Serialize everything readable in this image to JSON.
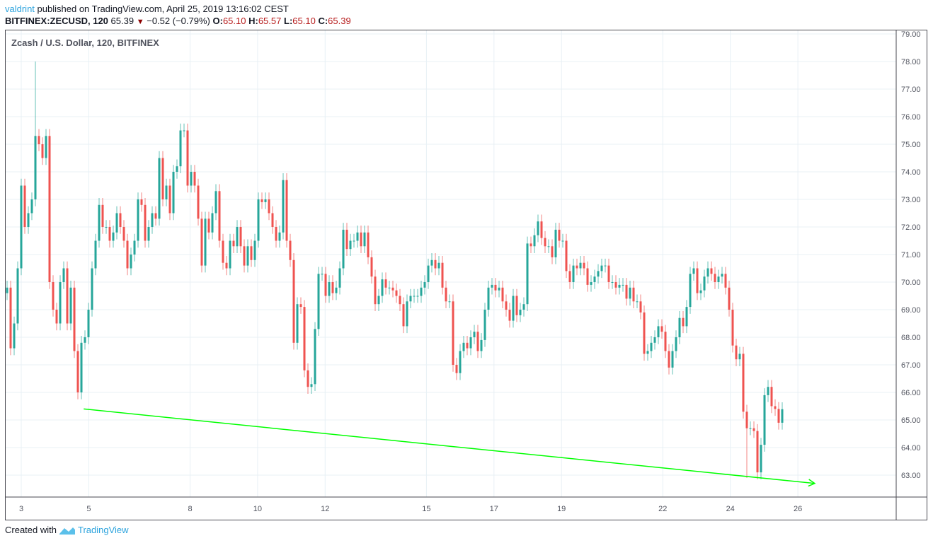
{
  "header": {
    "user": "valdrint",
    "published": "published on TradingView.com, April 25, 2019 13:16:02 CEST",
    "symbol": "BITFINEX:ZECUSD, 120",
    "last": "65.39",
    "change": "−0.52 (−0.79%)",
    "o_label": "O:",
    "o": "65.10",
    "h_label": "H:",
    "h": "65.57",
    "l_label": "L:",
    "l": "65.10",
    "c_label": "C:",
    "c": "65.39",
    "direction_icon": "triangle-down"
  },
  "legend": "Zcash / U.S. Dollar, 120, BITFINEX",
  "footer": {
    "created": "Created with",
    "brand": "TradingView"
  },
  "chart_data": {
    "type": "candlestick",
    "ylim": [
      62.4,
      79.15
    ],
    "y_ticks": [
      "63.00",
      "64.00",
      "65.00",
      "66.00",
      "67.00",
      "68.00",
      "69.00",
      "70.00",
      "71.00",
      "72.00",
      "73.00",
      "74.00",
      "75.00",
      "76.00",
      "77.00",
      "78.00",
      "79.00"
    ],
    "x_ticks": [
      3,
      5,
      8,
      10,
      12,
      15,
      17,
      19,
      22,
      24,
      26
    ],
    "x_tick_labels": [
      "3",
      "5",
      "8",
      "10",
      "12",
      "15",
      "17",
      "19",
      "22",
      "24",
      "26"
    ],
    "grid": true,
    "colors": {
      "up": "#26a69a",
      "down": "#ef5350",
      "trendline": "#00ff00",
      "grid": "#e8f0f5"
    },
    "first_open": 69.6,
    "close": [
      69.8,
      67.6,
      68.5,
      70.5,
      73.5,
      72,
      72.5,
      73,
      75.3,
      75,
      74.5,
      75.3,
      70,
      69,
      68.5,
      70,
      70.5,
      68.5,
      69.8,
      67.5,
      66,
      67.8,
      68,
      69,
      70.5,
      71.5,
      72.8,
      72,
      72,
      71.5,
      71.8,
      72.5,
      72,
      71.5,
      70.5,
      71,
      71.5,
      73,
      72.8,
      71.5,
      72,
      72.5,
      72.3,
      74.5,
      73,
      73.5,
      72.5,
      74,
      74.2,
      75.5,
      75.5,
      73.5,
      74,
      73.5,
      72.3,
      70.6,
      72.3,
      71.8,
      72.5,
      73.3,
      71.5,
      70.7,
      70.5,
      71.5,
      71.3,
      72,
      71.3,
      70.6,
      71.3,
      70.8,
      71.5,
      73,
      72.9,
      73,
      72.5,
      72,
      71.5,
      71.8,
      73.7,
      71.5,
      70.8,
      67.8,
      69.2,
      69.1,
      66.8,
      66.2,
      66.3,
      68.3,
      70.3,
      70.3,
      69.5,
      70,
      69.6,
      69.8,
      70.5,
      71.9,
      71.2,
      71.5,
      71.5,
      71.8,
      71.3,
      71.8,
      70.9,
      70.2,
      69.2,
      69.5,
      70.1,
      69.8,
      69.8,
      69.7,
      69.5,
      69.2,
      68.4,
      69.3,
      69.5,
      69.5,
      69.5,
      69.8,
      70,
      70.6,
      70.8,
      70.5,
      70.7,
      69.8,
      69.3,
      69.3,
      67,
      66.7,
      67.5,
      67.8,
      67.6,
      68,
      68.2,
      67.5,
      67.9,
      69,
      69.8,
      69.9,
      69.7,
      69.8,
      69.3,
      69,
      68.6,
      69.5,
      68.8,
      69,
      69.2,
      71.4,
      71.3,
      71.7,
      72.2,
      71.6,
      71.3,
      71.3,
      70.9,
      71.9,
      71.5,
      71.5,
      70.4,
      70,
      70.6,
      70.5,
      70.7,
      70.5,
      69.9,
      70,
      70.2,
      70.4,
      70.6,
      70.6,
      70,
      70,
      69.8,
      69.9,
      69.9,
      69.4,
      69.8,
      69.3,
      69.3,
      68.9,
      67.4,
      67.5,
      67.8,
      68,
      68.4,
      68.2,
      67.5,
      66.9,
      67.5,
      68,
      68.7,
      68.4,
      69.1,
      70.3,
      70.5,
      69.6,
      69.7,
      70.2,
      70.5,
      70.3,
      70,
      70.2,
      70.3,
      69.8,
      69,
      67.7,
      67.2,
      67.4,
      65.3,
      64.7,
      64.7,
      64.6,
      63.1,
      64.1,
      65.9,
      66.2,
      65.5,
      65.4,
      64.9,
      65.39
    ],
    "notable_high": 78.0,
    "notable_low": 62.9,
    "trendline": [
      [
        4.85,
        65.4
      ],
      [
        26.5,
        62.7
      ]
    ]
  }
}
